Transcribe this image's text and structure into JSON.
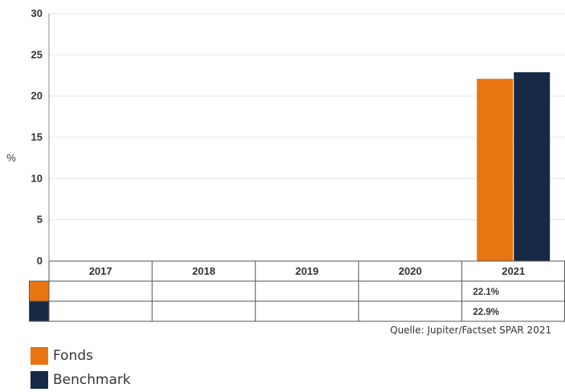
{
  "chart_data": {
    "type": "bar",
    "categories": [
      "2017",
      "2018",
      "2019",
      "2020",
      "2021"
    ],
    "series": [
      {
        "name": "Fonds",
        "values": [
          null,
          null,
          null,
          null,
          22.1
        ],
        "labels": [
          "",
          "",
          "",
          "",
          "22.1%"
        ],
        "color": "#e87511"
      },
      {
        "name": "Benchmark",
        "values": [
          null,
          null,
          null,
          null,
          22.9
        ],
        "labels": [
          "",
          "",
          "",
          "",
          "22.9%"
        ],
        "color": "#172a45"
      }
    ],
    "ylabel": "%",
    "ylim": [
      0,
      30
    ],
    "yticks": [
      0,
      5,
      10,
      15,
      20,
      25,
      30
    ],
    "grid": true,
    "legend_position": "bottom-left",
    "source": "Quelle: Jupiter/Factset SPAR 2021"
  }
}
